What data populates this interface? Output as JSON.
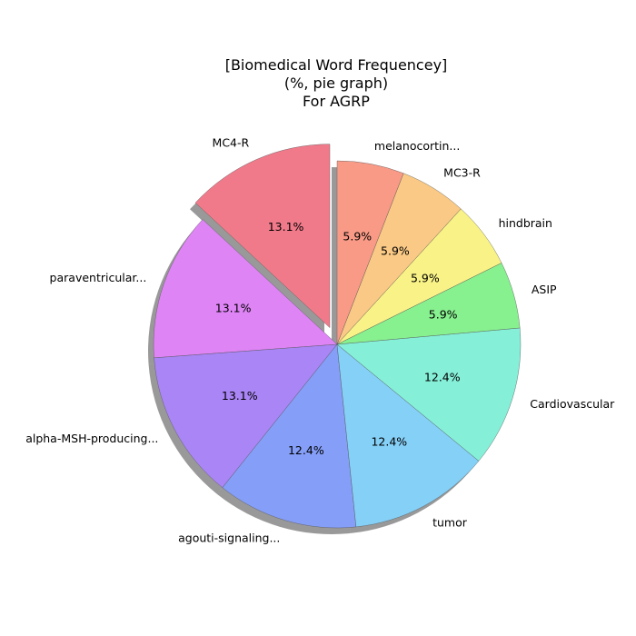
{
  "chart_data": {
    "type": "pie",
    "title_lines": [
      "[Biomedical Word Frequencey]",
      "(%, pie graph)",
      "For AGRP"
    ],
    "slices": [
      {
        "label": "MC4-R",
        "value": 13.1,
        "pct_text": "13.1%",
        "color": "#f07a8a",
        "exploded": true
      },
      {
        "label": "paraventricular...",
        "value": 13.1,
        "pct_text": "13.1%",
        "color": "#de84f5",
        "exploded": false
      },
      {
        "label": "alpha-MSH-producing...",
        "value": 13.1,
        "pct_text": "13.1%",
        "color": "#a985f5",
        "exploded": false
      },
      {
        "label": "agouti-signaling...",
        "value": 12.4,
        "pct_text": "12.4%",
        "color": "#859ef7",
        "exploded": false
      },
      {
        "label": "tumor",
        "value": 12.4,
        "pct_text": "12.4%",
        "color": "#85d0f7",
        "exploded": false
      },
      {
        "label": "Cardiovascular",
        "value": 12.4,
        "pct_text": "12.4%",
        "color": "#85efd8",
        "exploded": false
      },
      {
        "label": "ASIP",
        "value": 5.9,
        "pct_text": "5.9%",
        "color": "#87f08f",
        "exploded": false
      },
      {
        "label": "hindbrain",
        "value": 5.9,
        "pct_text": "5.9%",
        "color": "#f9f387",
        "exploded": false
      },
      {
        "label": "MC3-R",
        "value": 5.9,
        "pct_text": "5.9%",
        "color": "#f9c985",
        "exploded": false
      },
      {
        "label": "melanocortin...",
        "value": 5.9,
        "pct_text": "5.9%",
        "color": "#f99a87",
        "exploded": false
      }
    ],
    "start_angle_deg": 90,
    "direction": "counterclockwise",
    "shadow": true
  }
}
